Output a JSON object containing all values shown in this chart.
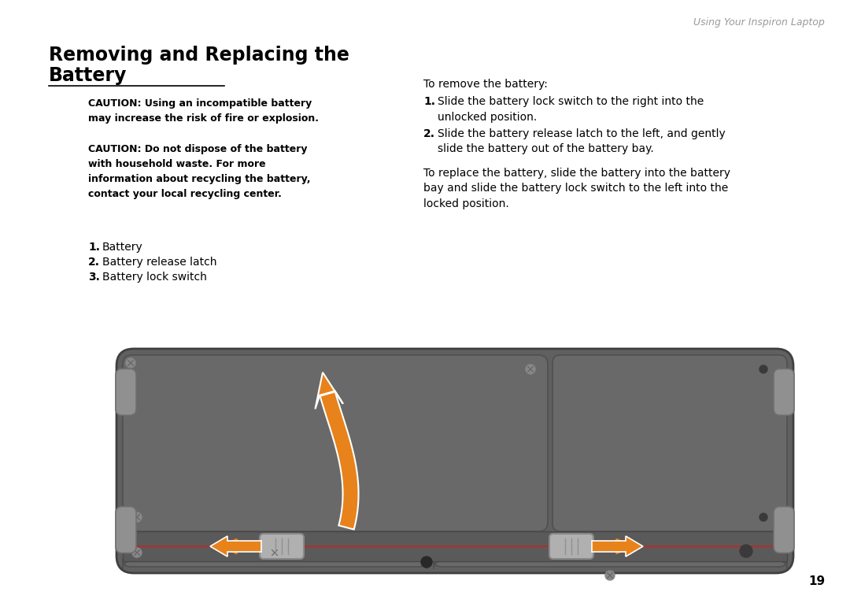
{
  "page_bg": "#ffffff",
  "header_text": "Using Your Inspiron Laptop",
  "header_color": "#999999",
  "title_line1": "Removing and Replacing the",
  "title_line2": "Battery",
  "title_color": "#000000",
  "caution1": "CAUTION: Using an incompatible battery\nmay increase the risk of fire or explosion.",
  "caution2": "CAUTION: Do not dispose of the battery\nwith household waste. For more\ninformation about recycling the battery,\ncontact your local recycling center.",
  "list_items": [
    "Battery",
    "Battery release latch",
    "Battery lock switch"
  ],
  "right_intro": "To remove the battery:",
  "right_step1_num": "1.",
  "right_step1_text": "Slide the battery lock switch to the right into the\nunlocked position.",
  "right_step2_num": "2.",
  "right_step2_text": "Slide the battery release latch to the left, and gently\nslide the battery out of the battery bay.",
  "right_para": "To replace the battery, slide the battery into the battery\nbay and slide the battery lock switch to the left into the\nlocked position.",
  "page_number": "19",
  "orange": "#E8821A",
  "laptop_dark": "#606060",
  "laptop_mid": "#6a6a6a",
  "laptop_light": "#707070",
  "laptop_edge": "#404040",
  "bumper_color": "#909090",
  "latch_color": "#a0a0a0",
  "screw_color": "#888888"
}
